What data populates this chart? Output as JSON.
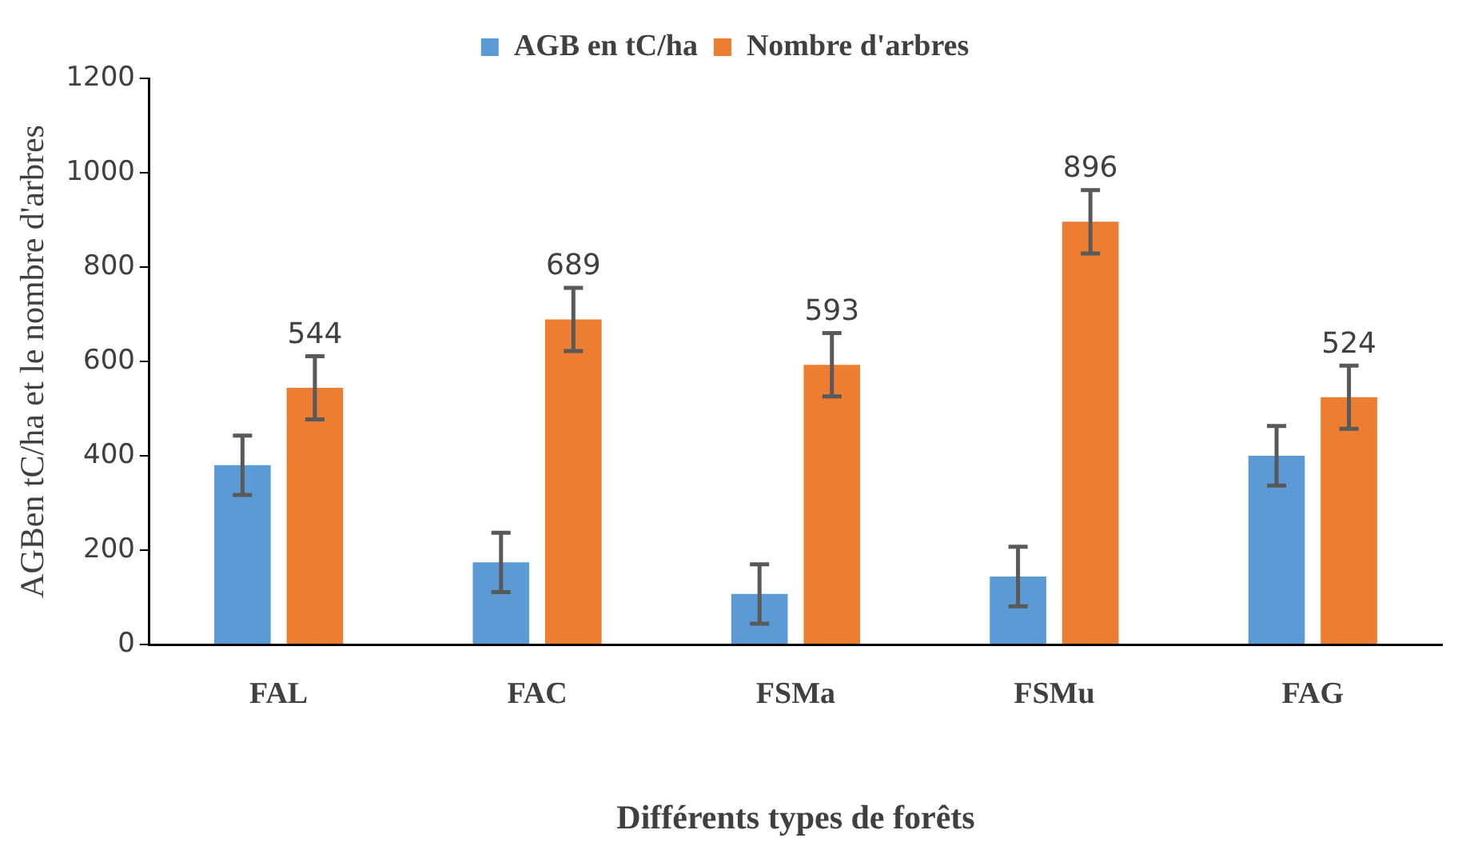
{
  "chart_data": {
    "type": "bar",
    "xlabel": "Différents types de forêts",
    "ylabel": "AGBen tC/ha et le nombre d'arbres",
    "categories": [
      "FAL",
      "FAC",
      "FSMa",
      "FSMu",
      "FAG"
    ],
    "series": [
      {
        "name": "AGB en tC/ha",
        "color": "#5b9bd5",
        "values": [
          380,
          174,
          107,
          144,
          400
        ],
        "errors": [
          63,
          63,
          63,
          63,
          63
        ]
      },
      {
        "name": "Nombre d'arbres",
        "color": "#ed7d31",
        "values": [
          544,
          689,
          593,
          896,
          524
        ],
        "errors": [
          67,
          67,
          67,
          67,
          67
        ],
        "value_labels": [
          "544",
          "689",
          "593",
          "896",
          "524"
        ]
      }
    ],
    "ylim": [
      0,
      1200
    ],
    "yticks": [
      0,
      200,
      400,
      600,
      800,
      1000,
      1200
    ],
    "grid": false,
    "legend": "top"
  }
}
